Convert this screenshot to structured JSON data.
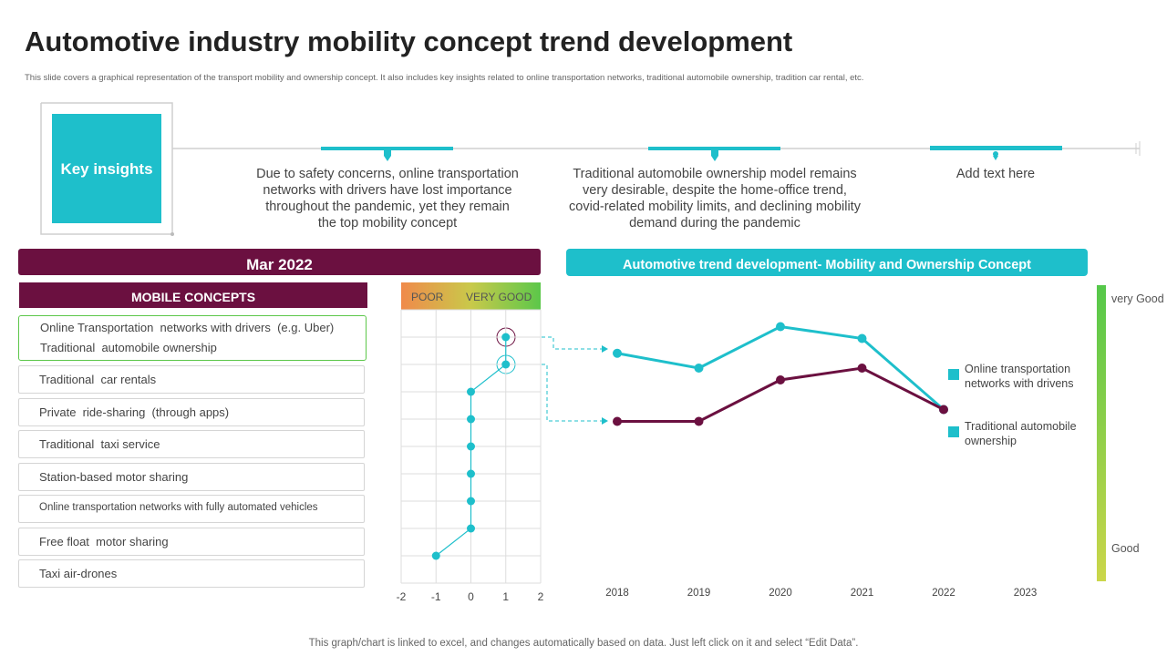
{
  "header": {
    "title": "Automotive industry mobility concept trend development",
    "subtitle": "This slide covers a graphical representation of the transport mobility and ownership concept. It also includes key insights related to online transportation networks, traditional automobile ownership, tradition car rental, etc."
  },
  "key_insights": {
    "label": "Key insights",
    "items": [
      "Due to safety concerns, online transportation networks with drivers have lost importance throughout the pandemic, yet they remain the top mobility concept",
      "Traditional automobile ownership model remains very desirable, despite the home-office trend, covid-related mobility limits, and declining mobility demand during the pandemic",
      "Add text here"
    ]
  },
  "panel_title": "Mar 2022",
  "chart_data": [
    {
      "type": "dot",
      "header": "MOBILE CONCEPTS",
      "column_labels": [
        "POOR",
        "VERY GOOD"
      ],
      "categories": [
        "Online Transportation  networks with drivers  (e.g. Uber)",
        "Traditional  automobile ownership",
        "Traditional  car rentals",
        "Private  ride-sharing  (through apps)",
        "Traditional  taxi service",
        "Station-based motor sharing",
        "Online transportation networks with fully automated vehicles",
        "Free float  motor sharing",
        "Taxi air-drones"
      ],
      "values": [
        1,
        1,
        0,
        0,
        0,
        0,
        0,
        0,
        -1
      ],
      "color": "#1ebfcb",
      "xlim": [
        -2,
        2
      ],
      "xticks": [
        -2,
        -1,
        0,
        1,
        2
      ],
      "grid": true
    },
    {
      "type": "line",
      "title": "Automotive trend development- Mobility and Ownership Concept",
      "categories": [
        "2018",
        "2019",
        "2020",
        "2021",
        "2022",
        "2023"
      ],
      "series": [
        {
          "name": "Online transportation networks with drivens",
          "color": "#1ebfcb",
          "values": [
            77,
            72,
            86,
            82,
            58,
            null
          ]
        },
        {
          "name": "Traditional automobile ownership",
          "color": "#6b1040",
          "values": [
            54,
            54,
            68,
            72,
            58,
            null
          ]
        }
      ],
      "ylim": [
        0,
        100
      ],
      "yticks": [
        {
          "value": 93,
          "label": "very Good"
        },
        {
          "value": 11,
          "label": "Good"
        }
      ],
      "legend_marker_color": "#1ebfcb"
    }
  ],
  "footer": "This graph/chart is linked to excel,  and changes automatically based on data. Just left click on it and select “Edit Data”."
}
